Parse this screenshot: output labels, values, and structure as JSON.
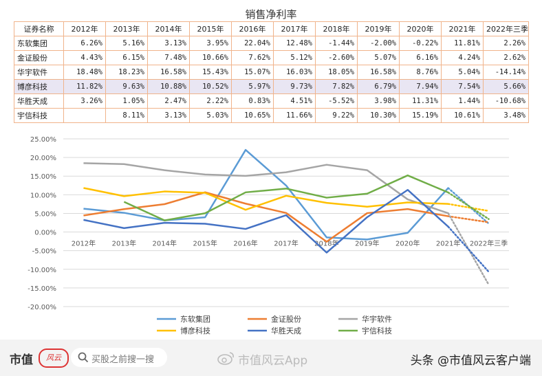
{
  "table": {
    "title": "销售净利率",
    "header": [
      "证券名称",
      "2012年",
      "2013年",
      "2014年",
      "2015年",
      "2016年",
      "2017年",
      "2018年",
      "2019年",
      "2020年",
      "2021年",
      "2022年三季"
    ],
    "rows": [
      {
        "name": "东软集团",
        "values": [
          "6.26%",
          "5.16%",
          "3.13%",
          "3.95%",
          "22.04%",
          "12.48%",
          "-1.44%",
          "-2.00%",
          "-0.22%",
          "11.81%",
          "2.26%"
        ]
      },
      {
        "name": "金证股份",
        "values": [
          "4.43%",
          "6.15%",
          "7.48%",
          "10.66%",
          "7.62%",
          "5.12%",
          "-2.60%",
          "5.07%",
          "6.16%",
          "4.24%",
          "2.62%"
        ]
      },
      {
        "name": "华宇软件",
        "values": [
          "18.48%",
          "18.23%",
          "16.58%",
          "15.43%",
          "15.07%",
          "16.03%",
          "18.05%",
          "16.58%",
          "8.76%",
          "5.04%",
          "-14.14%"
        ]
      },
      {
        "name": "博彦科技",
        "values": [
          "11.82%",
          "9.63%",
          "10.88%",
          "10.52%",
          "5.97%",
          "9.73%",
          "7.82%",
          "6.79%",
          "7.94%",
          "7.54%",
          "5.66%"
        ]
      },
      {
        "name": "华胜天成",
        "values": [
          "3.26%",
          "1.05%",
          "2.47%",
          "2.22%",
          "0.83%",
          "4.51%",
          "-5.52%",
          "3.98%",
          "11.31%",
          "1.44%",
          "-10.68%"
        ]
      },
      {
        "name": "宇信科技",
        "values": [
          "",
          "8.11%",
          "3.13%",
          "5.03%",
          "10.65%",
          "11.66%",
          "9.22%",
          "10.30%",
          "15.19%",
          "10.61%",
          "3.48%"
        ]
      }
    ]
  },
  "chart_data": {
    "type": "line",
    "categories": [
      "2012年",
      "2013年",
      "2014年",
      "2015年",
      "2016年",
      "2017年",
      "2018年",
      "2019年",
      "2020年",
      "2021年",
      "2022年三季"
    ],
    "ylim": [
      -20,
      25
    ],
    "y_ticks": [
      "25.00%",
      "20.00%",
      "15.00%",
      "10.00%",
      "5.00%",
      "0.00%",
      "-5.00%",
      "-10.00%",
      "-15.00%",
      "-20.00%"
    ],
    "grid": true,
    "legend_position": "bottom",
    "last_segment_style": "dotted",
    "series": [
      {
        "name": "东软集团",
        "color": "#5b9bd5",
        "values": [
          6.26,
          5.16,
          3.13,
          3.95,
          22.04,
          12.48,
          -1.44,
          -2.0,
          -0.22,
          11.81,
          2.26
        ]
      },
      {
        "name": "金证股份",
        "color": "#ed7d31",
        "values": [
          4.43,
          6.15,
          7.48,
          10.66,
          7.62,
          5.12,
          -2.6,
          5.07,
          6.16,
          4.24,
          2.62
        ]
      },
      {
        "name": "华宇软件",
        "color": "#a5a5a5",
        "values": [
          18.48,
          18.23,
          16.58,
          15.43,
          15.07,
          16.03,
          18.05,
          16.58,
          8.76,
          5.04,
          -14.14
        ]
      },
      {
        "name": "博彦科技",
        "color": "#ffc000",
        "values": [
          11.82,
          9.63,
          10.88,
          10.52,
          5.97,
          9.73,
          7.82,
          6.79,
          7.94,
          7.54,
          5.66
        ]
      },
      {
        "name": "华胜天成",
        "color": "#4472c4",
        "values": [
          3.26,
          1.05,
          2.47,
          2.22,
          0.83,
          4.51,
          -5.52,
          3.98,
          11.31,
          1.44,
          -10.68
        ]
      },
      {
        "name": "宇信科技",
        "color": "#70ad47",
        "values": [
          null,
          8.11,
          3.13,
          5.03,
          10.65,
          11.66,
          9.22,
          10.3,
          15.19,
          10.61,
          3.48
        ]
      }
    ]
  },
  "footer": {
    "logo_text": "市值",
    "logo_mark": "风云",
    "search_placeholder": "买股之前搜一搜",
    "watermark": "市值风云App",
    "byline": "头条 @市值风云客户端"
  }
}
